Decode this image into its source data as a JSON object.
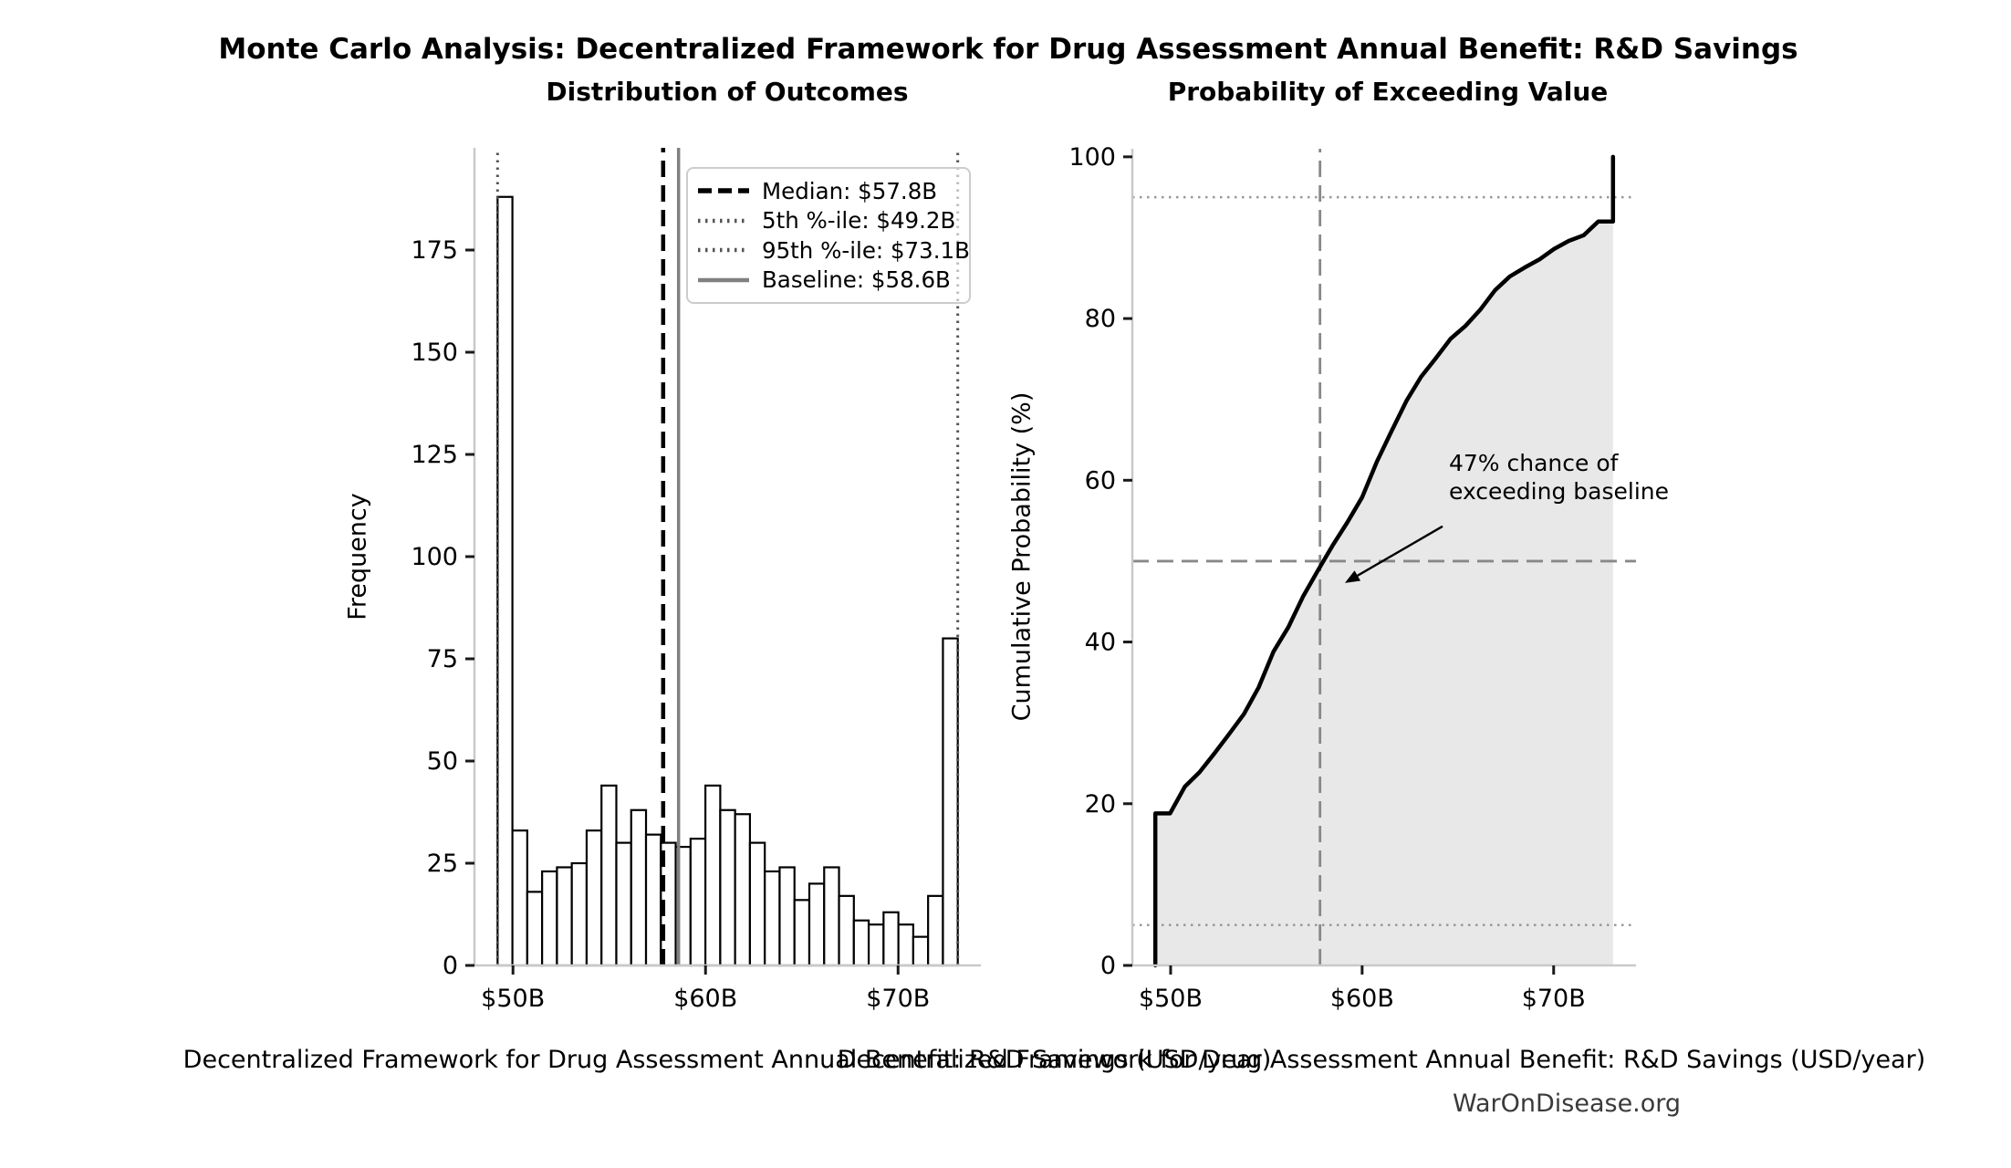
{
  "figure": {
    "title": "Monte Carlo Analysis: Decentralized Framework for Drug Assessment Annual Benefit: R&D Savings",
    "watermark": "WarOnDisease.org"
  },
  "chart_data": [
    {
      "type": "bar",
      "subtype": "histogram",
      "title": "Distribution of Outcomes",
      "xlabel": "Decentralized Framework for Drug Assessment Annual Benefit: R&D Savings (USD/year)",
      "ylabel": "Frequency",
      "bin_start": 49.2,
      "bin_end": 73.1,
      "bin_count": 31,
      "bin_width": 0.771,
      "values": [
        188,
        33,
        18,
        23,
        24,
        25,
        33,
        44,
        30,
        38,
        32,
        30,
        29,
        31,
        44,
        38,
        37,
        30,
        23,
        24,
        16,
        20,
        24,
        17,
        11,
        10,
        13,
        10,
        7,
        17,
        80
      ],
      "bar_fill": "#ffffff",
      "bar_edge": "#000000",
      "xlim": [
        48.0,
        74.3
      ],
      "ylim": [
        0,
        200
      ],
      "xticks": [
        {
          "v": 50,
          "label": "$50B"
        },
        {
          "v": 60,
          "label": "$60B"
        },
        {
          "v": 70,
          "label": "$70B"
        }
      ],
      "yticks": [
        {
          "v": 0,
          "label": "0"
        },
        {
          "v": 25,
          "label": "25"
        },
        {
          "v": 50,
          "label": "50"
        },
        {
          "v": 75,
          "label": "75"
        },
        {
          "v": 100,
          "label": "100"
        },
        {
          "v": 125,
          "label": "125"
        },
        {
          "v": 150,
          "label": "150"
        },
        {
          "v": 175,
          "label": "175"
        }
      ],
      "grid": false,
      "legend_position": "upper right",
      "ref_lines": [
        {
          "name": "median",
          "x": 57.8,
          "style": "dashed",
          "color": "#000000",
          "width": 4.5,
          "label": "Median: $57.8B"
        },
        {
          "name": "p5",
          "x": 49.2,
          "style": "dotted",
          "color": "#555555",
          "width": 3,
          "label": "5th %-ile: $49.2B"
        },
        {
          "name": "p95",
          "x": 73.1,
          "style": "dotted",
          "color": "#555555",
          "width": 3,
          "label": "95th %-ile: $73.1B"
        },
        {
          "name": "baseline",
          "x": 58.6,
          "style": "solid",
          "color": "#808080",
          "width": 3.5,
          "label": "Baseline: $58.6B"
        }
      ]
    },
    {
      "type": "line",
      "subtype": "cdf",
      "title": "Probability of Exceeding Value",
      "xlabel": "Decentralized Framework for Drug Assessment Annual Benefit: R&D Savings (USD/year)",
      "ylabel": "Cumulative Probability (%)",
      "x": [
        49.2,
        49.2,
        49.97,
        50.74,
        51.51,
        52.28,
        53.05,
        53.83,
        54.6,
        55.37,
        56.14,
        56.91,
        57.68,
        58.45,
        59.23,
        60.0,
        60.77,
        61.54,
        62.31,
        63.08,
        63.85,
        64.62,
        65.4,
        66.17,
        66.94,
        67.71,
        68.48,
        69.25,
        70.02,
        70.79,
        71.57,
        72.33,
        73.1,
        73.1
      ],
      "y": [
        0,
        18.8,
        18.8,
        22.1,
        23.9,
        26.2,
        28.6,
        31.1,
        34.4,
        38.8,
        41.8,
        45.6,
        48.8,
        51.9,
        54.8,
        57.9,
        62.3,
        66.1,
        69.8,
        72.8,
        75.1,
        77.5,
        79.1,
        81.1,
        83.5,
        85.2,
        86.3,
        87.3,
        88.6,
        89.6,
        90.3,
        92.0,
        92.0,
        100
      ],
      "line_color": "#000000",
      "line_width": 4.5,
      "fill": true,
      "fill_color": "#e8e8e8",
      "xlim": [
        48.0,
        74.3
      ],
      "ylim": [
        0,
        101
      ],
      "xticks": [
        {
          "v": 50,
          "label": "$50B"
        },
        {
          "v": 60,
          "label": "$60B"
        },
        {
          "v": 70,
          "label": "$70B"
        }
      ],
      "yticks": [
        {
          "v": 0,
          "label": "0"
        },
        {
          "v": 20,
          "label": "20"
        },
        {
          "v": 40,
          "label": "40"
        },
        {
          "v": 60,
          "label": "60"
        },
        {
          "v": 80,
          "label": "80"
        },
        {
          "v": 100,
          "label": "100"
        }
      ],
      "grid": false,
      "ref_lines_h": [
        {
          "name": "p5-level",
          "y": 5,
          "style": "dotted",
          "color": "#999999",
          "width": 2.5
        },
        {
          "name": "p50-level",
          "y": 50,
          "style": "dashed",
          "color": "#888888",
          "width": 2.8
        },
        {
          "name": "p95-level",
          "y": 95,
          "style": "dotted",
          "color": "#999999",
          "width": 2.5
        }
      ],
      "ref_lines_v": [
        {
          "name": "baseline-median",
          "x": 57.8,
          "style": "dashed",
          "color": "#888888",
          "width": 2.8
        }
      ],
      "annotation": {
        "lines": [
          "47% chance of",
          "exceeding baseline"
        ],
        "arrow_start": [
          64.2,
          54.3
        ],
        "arrow_end": [
          59.1,
          47.3
        ]
      }
    }
  ]
}
